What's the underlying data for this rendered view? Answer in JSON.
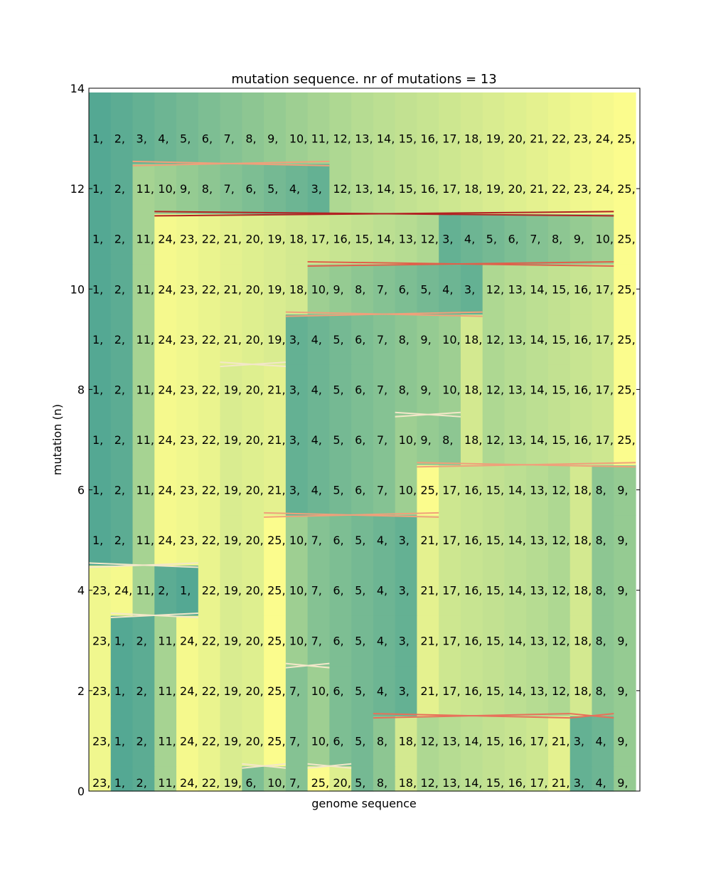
{
  "chart_data": {
    "type": "heatmap",
    "title": "mutation sequence. nr of mutations = 13",
    "xlabel": "genome sequence",
    "ylabel": "mutation (n)",
    "ylim": [
      0,
      14
    ],
    "yticks": [
      "0",
      "2",
      "4",
      "6",
      "8",
      "10",
      "12",
      "14"
    ],
    "xticks": [],
    "label_suffix": ",",
    "colormap": {
      "low": "#54a893",
      "mid": "#b6dc92",
      "high": "#fbfc8d",
      "min": 1,
      "max": 25
    },
    "rows": [
      [
        23,
        1,
        2,
        11,
        24,
        22,
        19,
        6,
        10,
        7,
        25,
        20,
        5,
        8,
        18,
        12,
        13,
        14,
        15,
        16,
        17,
        21,
        3,
        4,
        9
      ],
      [
        23,
        1,
        2,
        11,
        24,
        22,
        19,
        20,
        25,
        7,
        10,
        6,
        5,
        8,
        18,
        12,
        13,
        14,
        15,
        16,
        17,
        21,
        3,
        4,
        9
      ],
      [
        23,
        1,
        2,
        11,
        24,
        22,
        19,
        20,
        25,
        7,
        10,
        6,
        5,
        4,
        3,
        21,
        17,
        16,
        15,
        14,
        13,
        12,
        18,
        8,
        9
      ],
      [
        23,
        1,
        2,
        11,
        24,
        22,
        19,
        20,
        25,
        10,
        7,
        6,
        5,
        4,
        3,
        21,
        17,
        16,
        15,
        14,
        13,
        12,
        18,
        8,
        9
      ],
      [
        23,
        24,
        11,
        2,
        1,
        22,
        19,
        20,
        25,
        10,
        7,
        6,
        5,
        4,
        3,
        21,
        17,
        16,
        15,
        14,
        13,
        12,
        18,
        8,
        9
      ],
      [
        1,
        2,
        11,
        24,
        23,
        22,
        19,
        20,
        25,
        10,
        7,
        6,
        5,
        4,
        3,
        21,
        17,
        16,
        15,
        14,
        13,
        12,
        18,
        8,
        9
      ],
      [
        1,
        2,
        11,
        24,
        23,
        22,
        19,
        20,
        21,
        3,
        4,
        5,
        6,
        7,
        10,
        25,
        17,
        16,
        15,
        14,
        13,
        12,
        18,
        8,
        9
      ],
      [
        1,
        2,
        11,
        24,
        23,
        22,
        19,
        20,
        21,
        3,
        4,
        5,
        6,
        7,
        10,
        9,
        8,
        18,
        12,
        13,
        14,
        15,
        16,
        17,
        25
      ],
      [
        1,
        2,
        11,
        24,
        23,
        22,
        19,
        20,
        21,
        3,
        4,
        5,
        6,
        7,
        8,
        9,
        10,
        18,
        12,
        13,
        14,
        15,
        16,
        17,
        25
      ],
      [
        1,
        2,
        11,
        24,
        23,
        22,
        21,
        20,
        19,
        3,
        4,
        5,
        6,
        7,
        8,
        9,
        10,
        18,
        12,
        13,
        14,
        15,
        16,
        17,
        25
      ],
      [
        1,
        2,
        11,
        24,
        23,
        22,
        21,
        20,
        19,
        18,
        10,
        9,
        8,
        7,
        6,
        5,
        4,
        3,
        12,
        13,
        14,
        15,
        16,
        17,
        25
      ],
      [
        1,
        2,
        11,
        24,
        23,
        22,
        21,
        20,
        19,
        18,
        17,
        16,
        15,
        14,
        13,
        12,
        3,
        4,
        5,
        6,
        7,
        8,
        9,
        10,
        25
      ],
      [
        1,
        2,
        11,
        10,
        9,
        8,
        7,
        6,
        5,
        4,
        3,
        12,
        13,
        14,
        15,
        16,
        17,
        18,
        19,
        20,
        21,
        22,
        23,
        24,
        25
      ],
      [
        1,
        2,
        3,
        4,
        5,
        6,
        7,
        8,
        9,
        10,
        11,
        12,
        13,
        14,
        15,
        16,
        17,
        18,
        19,
        20,
        21,
        22,
        23,
        24,
        25
      ]
    ],
    "mutations": [
      {
        "after_row": 0,
        "start": 7,
        "end": 8,
        "color": "#f3e7c9"
      },
      {
        "after_row": 0,
        "start": 10,
        "end": 11,
        "color": "#f3e7c9"
      },
      {
        "after_row": 1,
        "start": 13,
        "end": 21,
        "color": "#e8705a"
      },
      {
        "after_row": 1,
        "start": 22,
        "end": 23,
        "color": "#e8705a"
      },
      {
        "after_row": 2,
        "start": 9,
        "end": 10,
        "color": "#f3e7c9"
      },
      {
        "after_row": 3,
        "start": 1,
        "end": 4,
        "color": "#f3e7c9"
      },
      {
        "after_row": 4,
        "start": 0,
        "end": 4,
        "color": "#f3e7c9"
      },
      {
        "after_row": 5,
        "start": 8,
        "end": 15,
        "color": "#f0a07a"
      },
      {
        "after_row": 6,
        "start": 15,
        "end": 24,
        "color": "#f0a07a"
      },
      {
        "after_row": 7,
        "start": 14,
        "end": 16,
        "color": "#f3e7c9"
      },
      {
        "after_row": 8,
        "start": 6,
        "end": 8,
        "color": "#f3e7c9"
      },
      {
        "after_row": 9,
        "start": 9,
        "end": 17,
        "color": "#f0a07a"
      },
      {
        "after_row": 10,
        "start": 10,
        "end": 23,
        "color": "#e0604a"
      },
      {
        "after_row": 11,
        "start": 3,
        "end": 23,
        "color": "#b22222"
      },
      {
        "after_row": 12,
        "start": 2,
        "end": 10,
        "color": "#f0a07a"
      }
    ]
  }
}
